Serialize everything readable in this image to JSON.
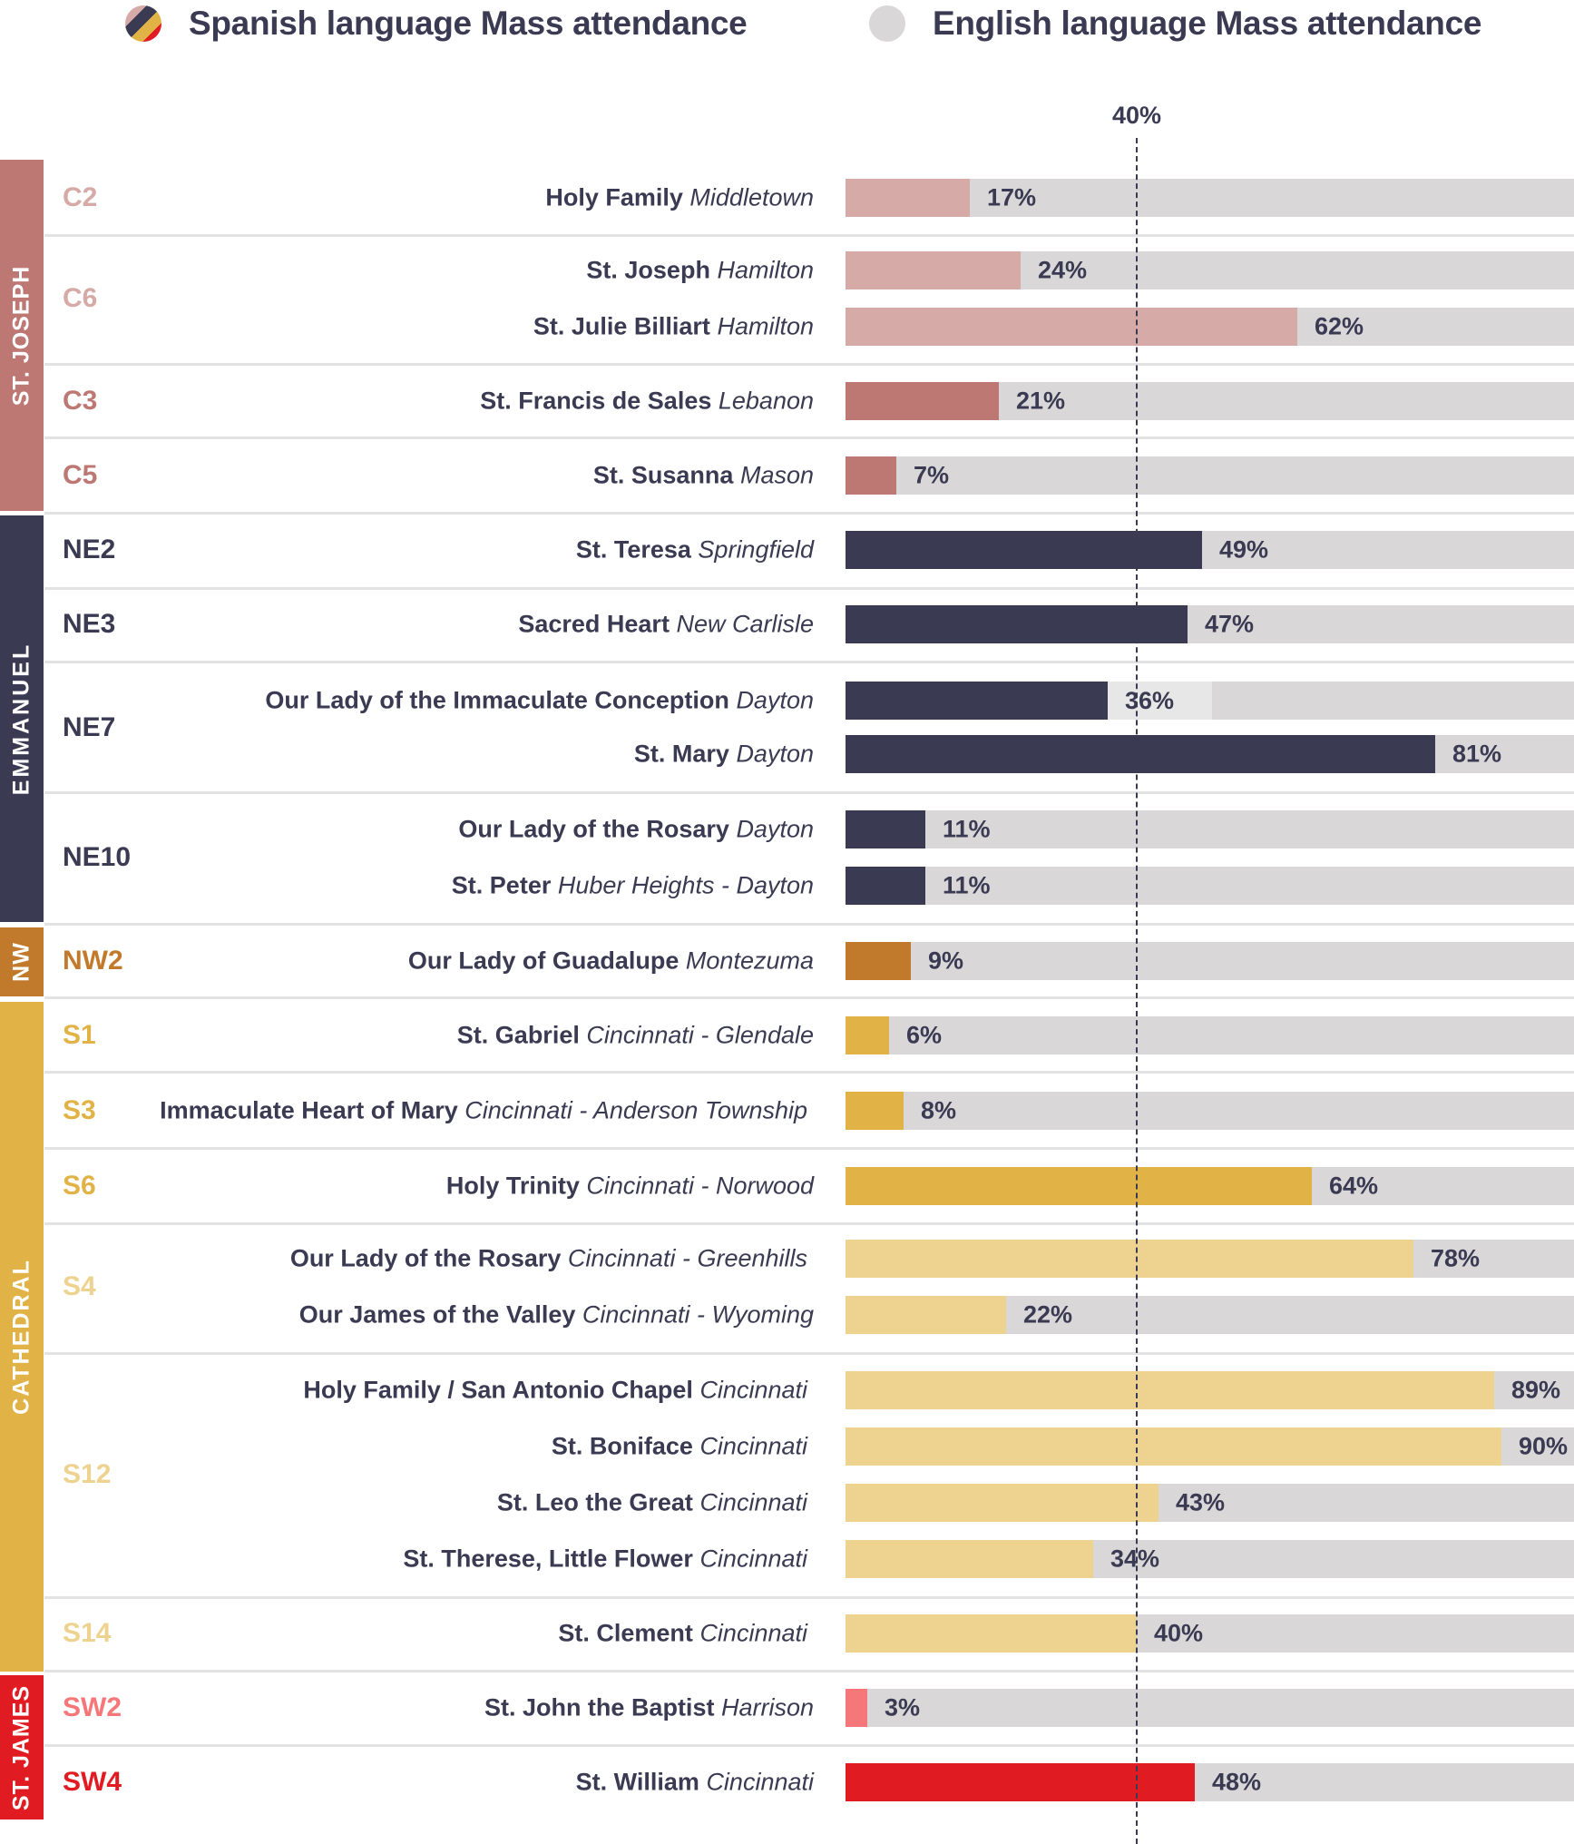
{
  "legend": {
    "spanish": {
      "label": "Spanish language Mass attendance",
      "icon": "multicolor-circle-icon"
    },
    "english": {
      "label": "English language Mass attendance",
      "icon": "gray-circle-icon",
      "color": "#d9d7d8"
    }
  },
  "reference_line": {
    "label": "40%",
    "value": 40
  },
  "colors": {
    "track": "#d9d7d8",
    "text": "#3a3a52",
    "C_light": "#d6aaa6",
    "C_dark": "#bd7874",
    "NE": "#3a3a52",
    "NW": "#c17a2b",
    "S_dark": "#e1b346",
    "S_light": "#edd290",
    "SW_light": "#f5777a",
    "SW_dark": "#e11b22"
  },
  "bands": [
    {
      "label": "ST. JOSEPH",
      "color": "#bd7874"
    },
    {
      "label": "EMMANUEL",
      "color": "#3a3a52"
    },
    {
      "label": "NW",
      "color": "#c17a2b"
    },
    {
      "label": "CATHEDRAL",
      "color": "#e1b346"
    },
    {
      "label": "ST. JAMES",
      "color": "#e11b22"
    }
  ],
  "codes": [
    {
      "code": "C2",
      "color": "#d6aaa6"
    },
    {
      "code": "C6",
      "color": "#d6aaa6"
    },
    {
      "code": "C3",
      "color": "#bd7874"
    },
    {
      "code": "C5",
      "color": "#bd7874"
    },
    {
      "code": "NE2",
      "color": "#3a3a52"
    },
    {
      "code": "NE3",
      "color": "#3a3a52"
    },
    {
      "code": "NE7",
      "color": "#3a3a52"
    },
    {
      "code": "NE10",
      "color": "#3a3a52"
    },
    {
      "code": "NW2",
      "color": "#c17a2b"
    },
    {
      "code": "S1",
      "color": "#e1b346"
    },
    {
      "code": "S3",
      "color": "#e1b346"
    },
    {
      "code": "S6",
      "color": "#e1b346"
    },
    {
      "code": "S4",
      "color": "#edd290"
    },
    {
      "code": "S12",
      "color": "#edd290"
    },
    {
      "code": "S14",
      "color": "#edd290"
    },
    {
      "code": "SW2",
      "color": "#f5777a"
    },
    {
      "code": "SW4",
      "color": "#e11b22"
    }
  ],
  "chart_data": {
    "type": "bar",
    "orientation": "horizontal",
    "title": "",
    "xlabel": "",
    "ylabel": "",
    "xlim": [
      0,
      100
    ],
    "unit": "%",
    "legend": [
      "Spanish language Mass attendance",
      "English language Mass attendance"
    ],
    "legend_position": "top",
    "annotations": [
      {
        "type": "vline",
        "value": 40,
        "label": "40%",
        "style": "dashed"
      }
    ],
    "rows": [
      {
        "band": "ST. JOSEPH",
        "code": "C2",
        "parish": "Holy Family",
        "place": "Middletown",
        "spanish": 17,
        "color": "#d6aaa6"
      },
      {
        "band": "ST. JOSEPH",
        "code": "C6",
        "parish": "St. Joseph",
        "place": "Hamilton",
        "spanish": 24,
        "color": "#d6aaa6"
      },
      {
        "band": "ST. JOSEPH",
        "code": "C6",
        "parish": "St. Julie Billiart",
        "place": "Hamilton",
        "spanish": 62,
        "color": "#d6aaa6"
      },
      {
        "band": "ST. JOSEPH",
        "code": "C3",
        "parish": "St. Francis de Sales",
        "place": "Lebanon",
        "spanish": 21,
        "color": "#bd7874"
      },
      {
        "band": "ST. JOSEPH",
        "code": "C5",
        "parish": "St. Susanna",
        "place": "Mason",
        "spanish": 7,
        "color": "#bd7874"
      },
      {
        "band": "EMMANUEL",
        "code": "NE2",
        "parish": "St. Teresa",
        "place": "Springfield",
        "spanish": 49,
        "color": "#3a3a52"
      },
      {
        "band": "EMMANUEL",
        "code": "NE3",
        "parish": "Sacred Heart",
        "place": "New Carlisle",
        "spanish": 47,
        "color": "#3a3a52"
      },
      {
        "band": "EMMANUEL",
        "code": "NE7",
        "parish": "Our Lady of the Immaculate Conception",
        "place": "Dayton",
        "spanish": 36,
        "color": "#3a3a52",
        "boxed_label": true
      },
      {
        "band": "EMMANUEL",
        "code": "NE7",
        "parish": "St. Mary",
        "place": "Dayton",
        "spanish": 81,
        "color": "#3a3a52"
      },
      {
        "band": "EMMANUEL",
        "code": "NE10",
        "parish": "Our Lady of the Rosary",
        "place": "Dayton",
        "spanish": 11,
        "color": "#3a3a52"
      },
      {
        "band": "EMMANUEL",
        "code": "NE10",
        "parish": "St. Peter",
        "place": "Huber Heights - Dayton",
        "spanish": 11,
        "color": "#3a3a52"
      },
      {
        "band": "NW",
        "code": "NW2",
        "parish": "Our Lady of Guadalupe",
        "place": "Montezuma",
        "spanish": 9,
        "color": "#c17a2b"
      },
      {
        "band": "CATHEDRAL",
        "code": "S1",
        "parish": "St. Gabriel",
        "place": "Cincinnati - Glendale",
        "spanish": 6,
        "color": "#e1b346"
      },
      {
        "band": "CATHEDRAL",
        "code": "S3",
        "parish": "Immaculate Heart of Mary",
        "place": "Cincinnati - Anderson Township",
        "spanish": 8,
        "color": "#e1b346"
      },
      {
        "band": "CATHEDRAL",
        "code": "S6",
        "parish": "Holy Trinity",
        "place": "Cincinnati - Norwood",
        "spanish": 64,
        "color": "#e1b346"
      },
      {
        "band": "CATHEDRAL",
        "code": "S4",
        "parish": "Our Lady of the Rosary",
        "place": "Cincinnati - Greenhills",
        "spanish": 78,
        "color": "#edd290"
      },
      {
        "band": "CATHEDRAL",
        "code": "S4",
        "parish": "Our James of the Valley",
        "place": "Cincinnati - Wyoming",
        "spanish": 22,
        "color": "#edd290"
      },
      {
        "band": "CATHEDRAL",
        "code": "S12",
        "parish": "Holy Family / San Antonio Chapel",
        "place": "Cincinnati",
        "spanish": 89,
        "color": "#edd290"
      },
      {
        "band": "CATHEDRAL",
        "code": "S12",
        "parish": "St. Boniface",
        "place": "Cincinnati",
        "spanish": 90,
        "color": "#edd290"
      },
      {
        "band": "CATHEDRAL",
        "code": "S12",
        "parish": "St. Leo the Great",
        "place": "Cincinnati",
        "spanish": 43,
        "color": "#edd290"
      },
      {
        "band": "CATHEDRAL",
        "code": "S12",
        "parish": "St. Therese, Little Flower",
        "place": "Cincinnati",
        "spanish": 34,
        "color": "#edd290"
      },
      {
        "band": "CATHEDRAL",
        "code": "S14",
        "parish": "St. Clement",
        "place": "Cincinnati",
        "spanish": 40,
        "color": "#edd290"
      },
      {
        "band": "ST. JAMES",
        "code": "SW2",
        "parish": "St. John the Baptist",
        "place": "Harrison",
        "spanish": 3,
        "color": "#f5777a"
      },
      {
        "band": "ST. JAMES",
        "code": "SW4",
        "parish": "St. William",
        "place": "Cincinnati",
        "spanish": 48,
        "color": "#e11b22"
      }
    ]
  }
}
